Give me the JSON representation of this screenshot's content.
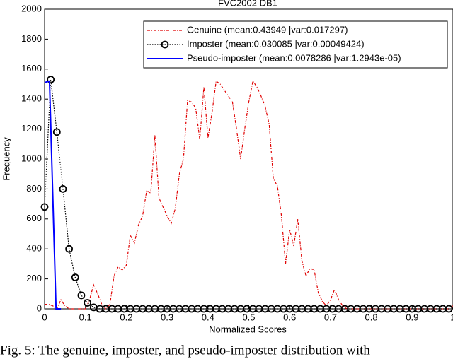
{
  "chart_data": {
    "type": "line",
    "title": "FVC2002 DB1",
    "x_label": "Normalized Scores",
    "y_label": "Frequency",
    "xlim": [
      0,
      1
    ],
    "ylim": [
      0,
      2000
    ],
    "xticks": [
      0,
      0.1,
      0.2,
      0.3,
      0.4,
      0.5,
      0.6,
      0.7,
      0.8,
      0.9,
      1
    ],
    "yticks": [
      0,
      200,
      400,
      600,
      800,
      1000,
      1200,
      1400,
      1600,
      1800,
      2000
    ],
    "grid": false,
    "legend": "upper right",
    "series": [
      {
        "name": "Genuine (mean:0.43949 |var:0.017297)",
        "color": "#e00000",
        "dash": "dashdot",
        "marker": "none",
        "x": [
          0,
          0.01,
          0.02,
          0.03,
          0.04,
          0.05,
          0.06,
          0.07,
          0.08,
          0.09,
          0.1,
          0.11,
          0.12,
          0.13,
          0.14,
          0.15,
          0.16,
          0.17,
          0.18,
          0.19,
          0.2,
          0.21,
          0.22,
          0.23,
          0.24,
          0.25,
          0.26,
          0.27,
          0.28,
          0.29,
          0.3,
          0.31,
          0.32,
          0.33,
          0.34,
          0.35,
          0.36,
          0.37,
          0.38,
          0.39,
          0.4,
          0.41,
          0.42,
          0.43,
          0.44,
          0.45,
          0.46,
          0.47,
          0.48,
          0.49,
          0.5,
          0.51,
          0.52,
          0.53,
          0.54,
          0.55,
          0.56,
          0.57,
          0.58,
          0.59,
          0.6,
          0.61,
          0.62,
          0.63,
          0.64,
          0.65,
          0.66,
          0.67,
          0.68,
          0.69,
          0.7,
          0.71,
          0.72,
          0.73,
          0.74,
          0.75,
          0.76,
          0.77,
          0.78,
          0.79,
          0.8,
          0.81,
          0.82,
          0.83,
          0.84,
          0.85,
          0.86,
          0.87,
          0.88,
          0.89,
          0.9,
          0.91,
          0.92,
          0.93,
          0.94,
          0.95,
          0.96,
          0.97,
          0.98,
          0.99,
          1
        ],
        "values": [
          30,
          30,
          20,
          0,
          60,
          20,
          0,
          0,
          0,
          0,
          0,
          60,
          160,
          100,
          30,
          0,
          30,
          220,
          280,
          260,
          290,
          490,
          440,
          560,
          620,
          790,
          770,
          1160,
          740,
          680,
          620,
          570,
          670,
          900,
          1000,
          1390,
          1380,
          1340,
          1130,
          1480,
          1140,
          1310,
          1520,
          1500,
          1460,
          1420,
          1380,
          1200,
          1000,
          1200,
          1380,
          1520,
          1480,
          1420,
          1350,
          1230,
          870,
          820,
          620,
          300,
          530,
          420,
          600,
          320,
          220,
          270,
          260,
          110,
          50,
          20,
          60,
          130,
          60,
          20,
          0,
          0,
          0,
          0,
          0,
          0,
          0,
          0,
          0,
          0,
          0,
          0,
          0,
          0,
          0,
          0,
          0,
          0,
          0,
          0,
          0,
          0,
          0,
          0,
          0,
          0,
          20
        ]
      },
      {
        "name": "Imposter (mean:0.030085 |var:0.00049424)",
        "color": "#000000",
        "dash": "dotted",
        "marker": "circle",
        "x": [
          0,
          0.015,
          0.03,
          0.045,
          0.06,
          0.075,
          0.09,
          0.105,
          0.12,
          0.135,
          0.15,
          0.165,
          0.18,
          0.195,
          0.21,
          0.225,
          0.24,
          0.255,
          0.27,
          0.285,
          0.3,
          0.315,
          0.33,
          0.345,
          0.36,
          0.375,
          0.39,
          0.405,
          0.42,
          0.435,
          0.45,
          0.465,
          0.48,
          0.495,
          0.51,
          0.525,
          0.54,
          0.555,
          0.57,
          0.585,
          0.6,
          0.615,
          0.63,
          0.645,
          0.66,
          0.675,
          0.69,
          0.705,
          0.72,
          0.735,
          0.75,
          0.765,
          0.78,
          0.795,
          0.81,
          0.825,
          0.84,
          0.855,
          0.87,
          0.885,
          0.9,
          0.915,
          0.93,
          0.945,
          0.96,
          0.975,
          0.99
        ],
        "values": [
          680,
          1530,
          1180,
          800,
          400,
          210,
          90,
          40,
          10,
          0,
          0,
          0,
          0,
          0,
          0,
          0,
          0,
          0,
          0,
          0,
          0,
          0,
          0,
          0,
          0,
          0,
          0,
          0,
          0,
          0,
          0,
          0,
          0,
          0,
          0,
          0,
          0,
          0,
          0,
          0,
          0,
          0,
          0,
          0,
          0,
          0,
          0,
          0,
          0,
          0,
          0,
          0,
          0,
          0,
          0,
          0,
          0,
          0,
          0,
          0,
          0,
          0,
          0,
          0,
          0,
          0,
          0
        ]
      },
      {
        "name": "Pseudo-imposter (mean:0.0078286 |var:1.2943e-05)",
        "color": "#0000ff",
        "dash": "solid",
        "marker": "none",
        "x": [
          0,
          0.012,
          0.028,
          0.04
        ],
        "values": [
          1510,
          1520,
          0,
          0
        ]
      }
    ]
  },
  "caption": "Fig. 5: The genuine, imposter, and pseudo-imposter distribution with"
}
